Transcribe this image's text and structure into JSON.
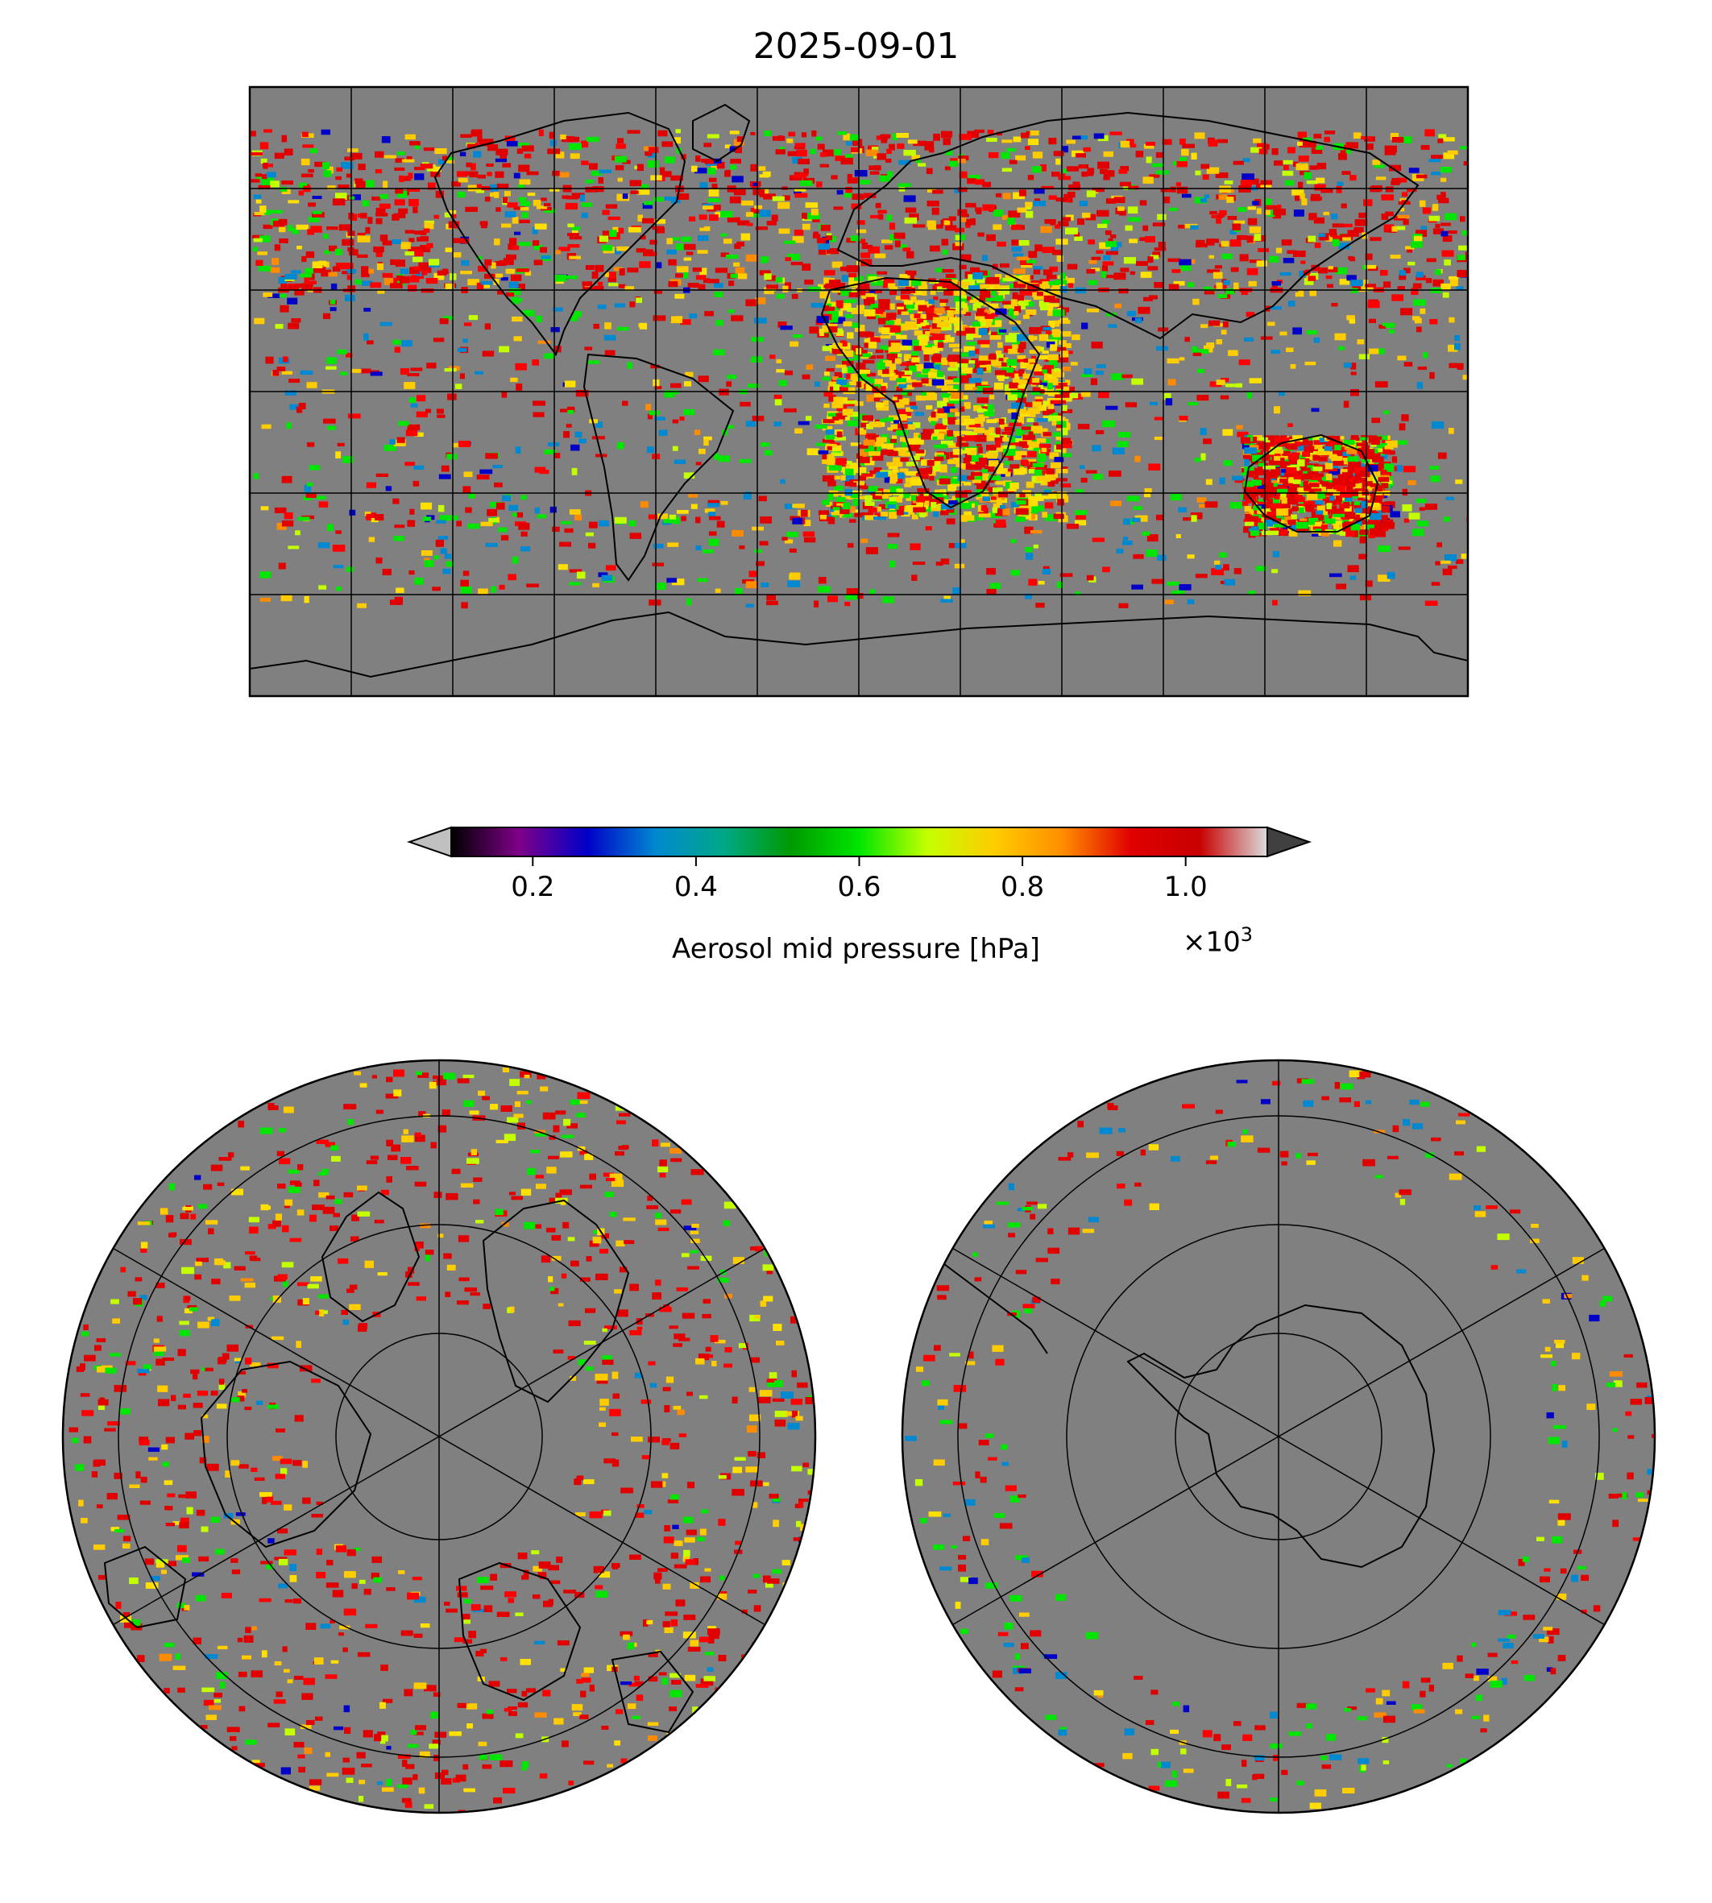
{
  "title": "2025-09-01",
  "colorbar": {
    "label": "Aerosol mid pressure [hPa]",
    "multiplier": "×10",
    "multiplier_exp": "3",
    "ticks": [
      {
        "value": 0.2,
        "label": "0.2"
      },
      {
        "value": 0.4,
        "label": "0.4"
      },
      {
        "value": 0.6,
        "label": "0.6"
      },
      {
        "value": 0.8,
        "label": "0.8"
      },
      {
        "value": 1.0,
        "label": "1.0"
      }
    ],
    "range": [
      0.1,
      1.1
    ],
    "extend": "both",
    "colormap": [
      "#000000",
      "#7f0088",
      "#0000c8",
      "#0088d0",
      "#00a888",
      "#009a00",
      "#00e600",
      "#c4ff00",
      "#ffcc00",
      "#ff8c00",
      "#e00000",
      "#c80000",
      "#dcdcdc"
    ],
    "under_color": "#c0c0c0",
    "over_color": "#404040"
  },
  "map_style": {
    "background": "#808080",
    "coastline_color": "#000000",
    "data_colors": [
      "#e00000",
      "#ff0000",
      "#ffcc00",
      "#ffe000",
      "#00e600",
      "#c4ff00",
      "#0088d0",
      "#0000c8",
      "#ff8c00"
    ]
  },
  "maps": {
    "global": {
      "projection": "plate-carree",
      "gridlines": "on"
    },
    "north_polar": {
      "projection": "north-polar-stereographic",
      "gridlines": "on"
    },
    "south_polar": {
      "projection": "south-polar-stereographic",
      "gridlines": "on"
    }
  }
}
